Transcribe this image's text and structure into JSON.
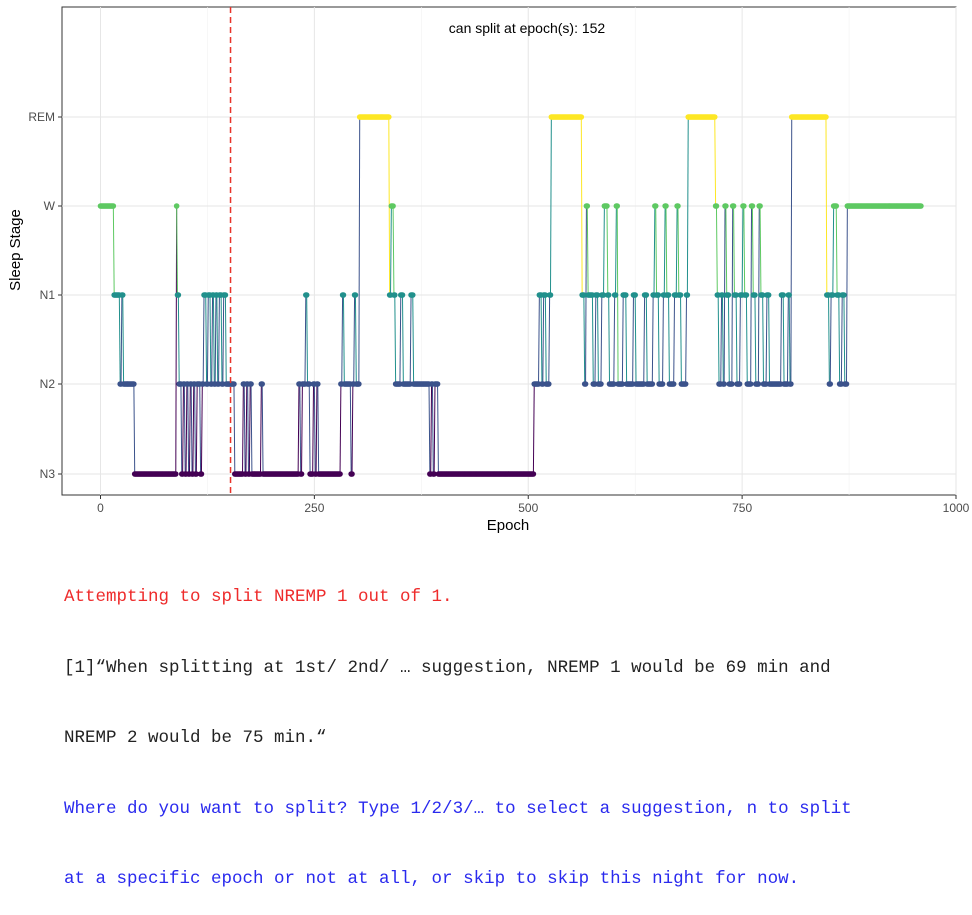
{
  "chart_data": {
    "type": "line",
    "annotation": "can split at epoch(s): 152",
    "xlabel": "Epoch",
    "ylabel": "Sleep Stage",
    "xlim": [
      -45,
      1000
    ],
    "x_ticks": [
      0,
      250,
      500,
      750,
      1000
    ],
    "x_tick_labels": [
      "0",
      "250",
      "500",
      "750",
      "1000"
    ],
    "y_categories": [
      "N3",
      "N2",
      "N1",
      "W",
      "REM"
    ],
    "y_levels": [
      1,
      2,
      3,
      4,
      5
    ],
    "vline": {
      "x": 152,
      "style": "dashed",
      "color": "#e8332a"
    },
    "grid": true,
    "color_scale": {
      "N3": "#440154",
      "N2": "#3b528b",
      "N1": "#21908c",
      "W": "#5ec962",
      "REM": "#fde725"
    },
    "segments": [
      [
        0,
        15,
        "W"
      ],
      [
        16,
        22,
        "N1"
      ],
      [
        23,
        24,
        "N2"
      ],
      [
        25,
        26,
        "N1"
      ],
      [
        27,
        39,
        "N2"
      ],
      [
        40,
        88,
        "N3"
      ],
      [
        89,
        89,
        "W"
      ],
      [
        90,
        91,
        "N1"
      ],
      [
        92,
        94,
        "N2"
      ],
      [
        95,
        96,
        "N3"
      ],
      [
        97,
        98,
        "N2"
      ],
      [
        99,
        100,
        "N3"
      ],
      [
        101,
        102,
        "N2"
      ],
      [
        103,
        104,
        "N3"
      ],
      [
        105,
        106,
        "N2"
      ],
      [
        107,
        108,
        "N3"
      ],
      [
        109,
        110,
        "N2"
      ],
      [
        111,
        112,
        "N3"
      ],
      [
        113,
        116,
        "N2"
      ],
      [
        117,
        118,
        "N3"
      ],
      [
        119,
        120,
        "N2"
      ],
      [
        121,
        123,
        "N1"
      ],
      [
        124,
        125,
        "N2"
      ],
      [
        126,
        128,
        "N1"
      ],
      [
        129,
        130,
        "N2"
      ],
      [
        131,
        132,
        "N1"
      ],
      [
        133,
        134,
        "N2"
      ],
      [
        135,
        136,
        "N1"
      ],
      [
        137,
        138,
        "N2"
      ],
      [
        139,
        141,
        "N1"
      ],
      [
        142,
        143,
        "N2"
      ],
      [
        144,
        146,
        "N1"
      ],
      [
        147,
        156,
        "N2"
      ],
      [
        157,
        166,
        "N3"
      ],
      [
        167,
        168,
        "N2"
      ],
      [
        169,
        170,
        "N3"
      ],
      [
        171,
        172,
        "N2"
      ],
      [
        173,
        174,
        "N3"
      ],
      [
        175,
        176,
        "N2"
      ],
      [
        177,
        187,
        "N3"
      ],
      [
        188,
        189,
        "N2"
      ],
      [
        190,
        231,
        "N3"
      ],
      [
        232,
        233,
        "N2"
      ],
      [
        234,
        235,
        "N3"
      ],
      [
        236,
        239,
        "N2"
      ],
      [
        240,
        241,
        "N1"
      ],
      [
        242,
        244,
        "N2"
      ],
      [
        245,
        248,
        "N3"
      ],
      [
        249,
        250,
        "N2"
      ],
      [
        251,
        252,
        "N3"
      ],
      [
        253,
        254,
        "N2"
      ],
      [
        255,
        280,
        "N3"
      ],
      [
        281,
        282,
        "N2"
      ],
      [
        283,
        284,
        "N1"
      ],
      [
        285,
        292,
        "N2"
      ],
      [
        293,
        294,
        "N3"
      ],
      [
        295,
        296,
        "N2"
      ],
      [
        297,
        298,
        "N1"
      ],
      [
        299,
        302,
        "N2"
      ],
      [
        303,
        337,
        "REM"
      ],
      [
        338,
        339,
        "N1"
      ],
      [
        340,
        342,
        "W"
      ],
      [
        343,
        344,
        "N1"
      ],
      [
        345,
        350,
        "N2"
      ],
      [
        351,
        353,
        "N1"
      ],
      [
        354,
        362,
        "N2"
      ],
      [
        363,
        365,
        "N1"
      ],
      [
        366,
        384,
        "N2"
      ],
      [
        385,
        386,
        "N3"
      ],
      [
        387,
        388,
        "N2"
      ],
      [
        389,
        390,
        "N3"
      ],
      [
        391,
        394,
        "N2"
      ],
      [
        395,
        506,
        "N3"
      ],
      [
        507,
        512,
        "N2"
      ],
      [
        513,
        515,
        "N1"
      ],
      [
        516,
        517,
        "N2"
      ],
      [
        518,
        520,
        "N1"
      ],
      [
        521,
        524,
        "N2"
      ],
      [
        525,
        526,
        "N1"
      ],
      [
        527,
        562,
        "REM"
      ],
      [
        563,
        565,
        "N1"
      ],
      [
        566,
        567,
        "N2"
      ],
      [
        568,
        569,
        "W"
      ],
      [
        570,
        575,
        "N1"
      ],
      [
        576,
        578,
        "N2"
      ],
      [
        579,
        581,
        "N1"
      ],
      [
        582,
        585,
        "N2"
      ],
      [
        586,
        588,
        "N1"
      ],
      [
        589,
        592,
        "W"
      ],
      [
        593,
        594,
        "N1"
      ],
      [
        595,
        600,
        "N2"
      ],
      [
        601,
        602,
        "N1"
      ],
      [
        603,
        604,
        "W"
      ],
      [
        605,
        610,
        "N2"
      ],
      [
        611,
        614,
        "N1"
      ],
      [
        615,
        622,
        "N2"
      ],
      [
        623,
        625,
        "N1"
      ],
      [
        626,
        635,
        "N2"
      ],
      [
        636,
        638,
        "N1"
      ],
      [
        639,
        645,
        "N2"
      ],
      [
        646,
        647,
        "N1"
      ],
      [
        648,
        649,
        "W"
      ],
      [
        650,
        652,
        "N1"
      ],
      [
        653,
        657,
        "N2"
      ],
      [
        658,
        659,
        "N1"
      ],
      [
        660,
        661,
        "W"
      ],
      [
        662,
        664,
        "N1"
      ],
      [
        665,
        670,
        "N2"
      ],
      [
        671,
        673,
        "N1"
      ],
      [
        674,
        675,
        "W"
      ],
      [
        676,
        678,
        "N1"
      ],
      [
        679,
        684,
        "N2"
      ],
      [
        685,
        686,
        "N1"
      ],
      [
        687,
        718,
        "REM"
      ],
      [
        719,
        720,
        "W"
      ],
      [
        721,
        722,
        "N1"
      ],
      [
        723,
        725,
        "N2"
      ],
      [
        726,
        727,
        "N1"
      ],
      [
        728,
        729,
        "N2"
      ],
      [
        730,
        731,
        "W"
      ],
      [
        732,
        734,
        "N1"
      ],
      [
        735,
        738,
        "N2"
      ],
      [
        739,
        740,
        "W"
      ],
      [
        741,
        743,
        "N1"
      ],
      [
        744,
        747,
        "N2"
      ],
      [
        748,
        750,
        "N1"
      ],
      [
        751,
        752,
        "W"
      ],
      [
        753,
        755,
        "N1"
      ],
      [
        756,
        760,
        "N2"
      ],
      [
        761,
        762,
        "W"
      ],
      [
        763,
        765,
        "N1"
      ],
      [
        766,
        769,
        "N2"
      ],
      [
        770,
        771,
        "W"
      ],
      [
        772,
        774,
        "N1"
      ],
      [
        775,
        778,
        "N2"
      ],
      [
        779,
        781,
        "N1"
      ],
      [
        782,
        795,
        "N2"
      ],
      [
        796,
        798,
        "N1"
      ],
      [
        799,
        803,
        "N2"
      ],
      [
        804,
        805,
        "N1"
      ],
      [
        806,
        807,
        "N2"
      ],
      [
        808,
        848,
        "REM"
      ],
      [
        849,
        851,
        "N1"
      ],
      [
        852,
        853,
        "N2"
      ],
      [
        854,
        856,
        "N1"
      ],
      [
        857,
        860,
        "W"
      ],
      [
        861,
        863,
        "N1"
      ],
      [
        864,
        866,
        "N2"
      ],
      [
        867,
        869,
        "N1"
      ],
      [
        870,
        872,
        "N2"
      ],
      [
        873,
        875,
        "W"
      ],
      [
        876,
        959,
        "W"
      ]
    ]
  },
  "console": {
    "line1": "Attempting to split NREMP 1 out of 1.",
    "line2": "[1]“When splitting at 1st/ 2nd/ … suggestion, NREMP 1 would be 69 min and",
    "line3": "NREMP 2 would be 75 min.“",
    "line4": "Where do you want to split? Type 1/2/3/… to select a suggestion, n to split",
    "line5": "at a specific epoch or not at all, or skip to skip this night for now."
  }
}
